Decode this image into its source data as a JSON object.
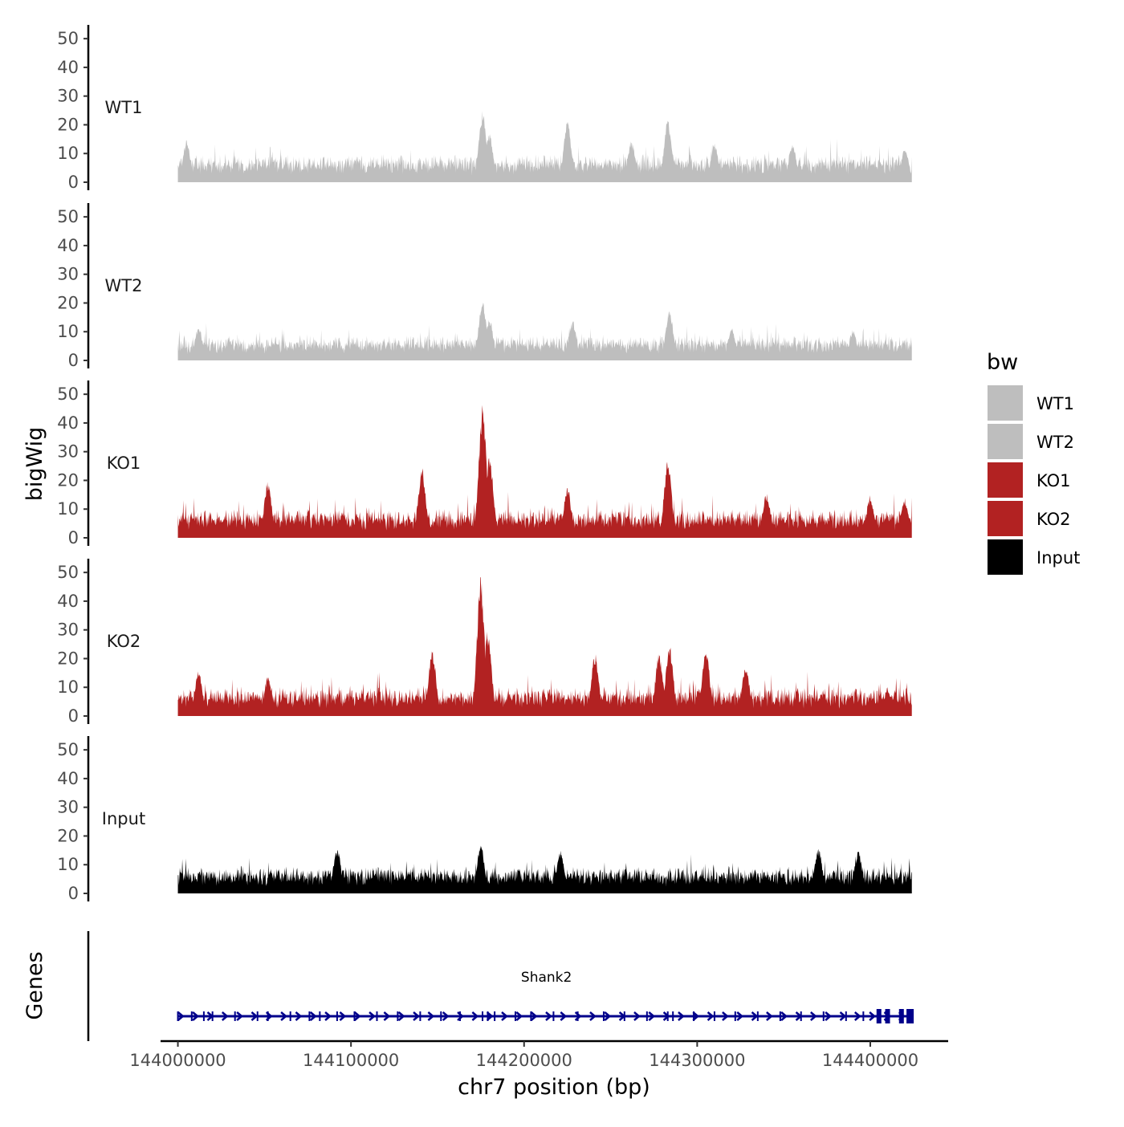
{
  "chart_data": {
    "type": "area",
    "chromosome": "chr7",
    "x_range": [
      143990000,
      144445000
    ],
    "data_x_range": [
      144000000,
      144424000
    ],
    "xlabel": "chr7 position (bp)",
    "x_ticks": [
      144000000,
      144100000,
      144200000,
      144300000,
      144400000
    ],
    "x_tick_labels": [
      "144000000",
      "144100000",
      "144200000",
      "144300000",
      "144400000"
    ],
    "ylabel": "bigWig",
    "ylim": [
      0,
      52
    ],
    "y_ticks": [
      0,
      10,
      20,
      30,
      40,
      50
    ],
    "y_tick_labels": [
      "0",
      "10",
      "20",
      "30",
      "40",
      "50"
    ],
    "tracks": [
      {
        "name": "WT1",
        "color": "#BEBEBE",
        "baseline": 7,
        "noise": 6,
        "peaks": [
          [
            144005000,
            15
          ],
          [
            144176000,
            25
          ],
          [
            144180000,
            17
          ],
          [
            144225000,
            22
          ],
          [
            144262000,
            15
          ],
          [
            144283000,
            22
          ],
          [
            144310000,
            14
          ],
          [
            144355000,
            14
          ],
          [
            144420000,
            12
          ]
        ]
      },
      {
        "name": "WT2",
        "color": "#BEBEBE",
        "baseline": 6,
        "noise": 6,
        "peaks": [
          [
            144012000,
            12
          ],
          [
            144176000,
            22
          ],
          [
            144180000,
            15
          ],
          [
            144228000,
            14
          ],
          [
            144284000,
            18
          ],
          [
            144320000,
            12
          ],
          [
            144390000,
            11
          ]
        ]
      },
      {
        "name": "KO1",
        "color": "#B22222",
        "baseline": 7,
        "noise": 7,
        "peaks": [
          [
            144052000,
            20
          ],
          [
            144141000,
            25
          ],
          [
            144176000,
            47
          ],
          [
            144180000,
            30
          ],
          [
            144225000,
            18
          ],
          [
            144283000,
            27
          ],
          [
            144340000,
            16
          ],
          [
            144400000,
            15
          ],
          [
            144420000,
            14
          ]
        ]
      },
      {
        "name": "KO2",
        "color": "#B22222",
        "baseline": 7,
        "noise": 7,
        "peaks": [
          [
            144012000,
            16
          ],
          [
            144052000,
            14
          ],
          [
            144147000,
            23
          ],
          [
            144175000,
            49
          ],
          [
            144179000,
            30
          ],
          [
            144241000,
            22
          ],
          [
            144278000,
            22
          ],
          [
            144284000,
            25
          ],
          [
            144305000,
            24
          ],
          [
            144328000,
            18
          ],
          [
            144410000,
            10
          ]
        ]
      },
      {
        "name": "Input",
        "color": "#000000",
        "baseline": 7,
        "noise": 5,
        "peaks": [
          [
            144092000,
            16
          ],
          [
            144175000,
            17
          ],
          [
            144221000,
            15
          ],
          [
            144370000,
            16
          ],
          [
            144393000,
            15
          ]
        ]
      }
    ],
    "genes_label": "Genes",
    "genes": [
      {
        "name": "Shank2",
        "start": 144000000,
        "end": 144424000,
        "strand": "+",
        "color": "#00008B",
        "exons": [
          144000000,
          144008000,
          144015000,
          144020000,
          144033000,
          144046000,
          144052000,
          144065000,
          144076000,
          144082000,
          144092000,
          144102000,
          144115000,
          144127000,
          144140000,
          144152000,
          144163000,
          144176000,
          144179000,
          144183000,
          144195000,
          144204000,
          144217000,
          144231000,
          144246000,
          144258000,
          144271000,
          144283000,
          144286000,
          144298000,
          144310000,
          144322000,
          144335000,
          144348000,
          144360000,
          144373000,
          144386000,
          144396000,
          144405000,
          144410000,
          144418000,
          144423000
        ]
      }
    ],
    "legend": {
      "title": "bw",
      "position": "right",
      "entries": [
        {
          "label": "WT1",
          "color": "#BEBEBE"
        },
        {
          "label": "WT2",
          "color": "#BEBEBE"
        },
        {
          "label": "KO1",
          "color": "#B22222"
        },
        {
          "label": "KO2",
          "color": "#B22222"
        },
        {
          "label": "Input",
          "color": "#000000"
        }
      ]
    }
  }
}
